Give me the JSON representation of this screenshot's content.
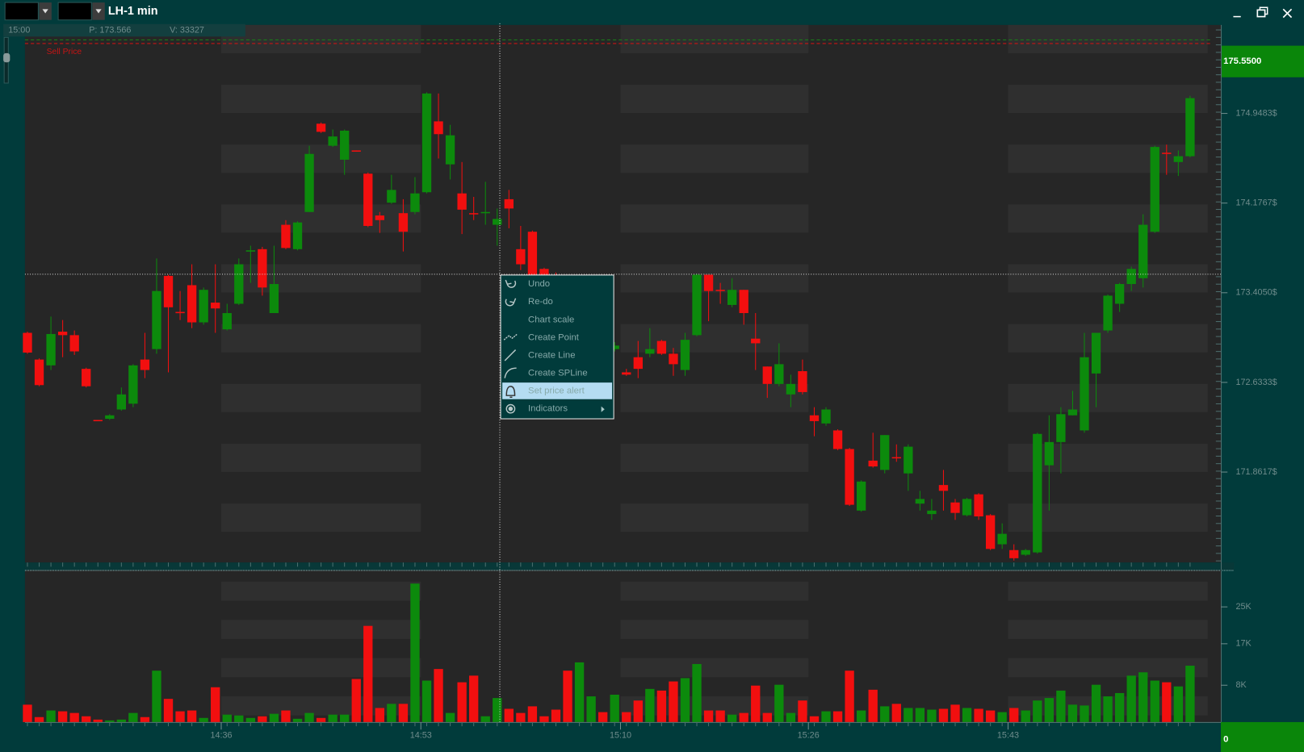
{
  "window": {
    "title": "LH-1 min"
  },
  "info_bar": {
    "time": "15:00",
    "price": "P: 173.566",
    "volume": "V: 33327"
  },
  "context_menu": {
    "items": [
      "Undo",
      "Re-do",
      "Chart scale",
      "Create Point",
      "Create Line",
      "Create SPLine",
      "Set price alert",
      "Indicators"
    ],
    "selected_index": 6
  },
  "chart_data": [
    {
      "type": "candlestick",
      "up_color": "#0c8a0c",
      "down_color": "#f20f0f",
      "open": [
        173.06,
        172.83,
        172.78,
        173.07,
        173.04,
        172.75,
        172.31,
        172.32,
        172.4,
        172.45,
        172.83,
        172.92,
        173.55,
        173.24,
        173.47,
        173.15,
        173.32,
        173.09,
        173.31,
        173.76,
        173.78,
        173.23,
        173.99,
        173.78,
        174.1,
        174.86,
        174.67,
        174.55,
        174.63,
        174.43,
        174.07,
        174.18,
        174.09,
        174.1,
        174.27,
        174.88,
        174.51,
        174.26,
        174.09,
        174.09,
        173.99,
        174.21,
        173.78,
        173.93,
        173.61,
        173.56,
        173.38,
        173.22,
        173.06,
        173.06,
        172.92,
        172.72,
        172.85,
        172.88,
        172.99,
        172.88,
        172.74,
        173.04,
        173.56,
        173.43,
        173.3,
        173.43,
        173.01,
        172.77,
        172.62,
        172.53,
        172.73,
        172.35,
        172.28,
        172.22,
        172.06,
        171.53,
        171.96,
        171.88,
        171.99,
        171.85,
        171.59,
        171.5,
        171.75,
        171.6,
        171.49,
        171.67,
        171.49,
        171.24,
        171.19,
        171.15,
        171.17,
        171.92,
        172.12,
        172.35,
        172.22,
        172.71,
        173.08,
        173.31,
        173.48,
        173.53,
        173.93,
        174.61,
        174.53,
        174.58
      ],
      "high": [
        173.07,
        172.84,
        173.2,
        173.17,
        173.08,
        172.76,
        172.31,
        172.36,
        172.59,
        172.79,
        173.06,
        173.7,
        173.56,
        173.42,
        173.65,
        173.45,
        173.65,
        173.31,
        173.7,
        173.81,
        173.8,
        173.81,
        174.03,
        174.02,
        174.67,
        174.87,
        174.81,
        174.81,
        174.63,
        174.44,
        174.1,
        174.42,
        174.21,
        174.4,
        175.13,
        175.12,
        174.85,
        174.53,
        174.23,
        174.36,
        174.13,
        174.29,
        173.98,
        173.94,
        173.62,
        173.58,
        173.4,
        173.35,
        173.3,
        173.1,
        172.98,
        172.75,
        172.99,
        173.1,
        173.0,
        172.93,
        173.06,
        173.57,
        173.56,
        173.49,
        173.53,
        173.43,
        173.23,
        172.77,
        172.97,
        172.7,
        172.83,
        172.42,
        172.42,
        172.23,
        172.07,
        171.79,
        172.2,
        172.18,
        172.1,
        172.1,
        171.7,
        171.63,
        171.88,
        171.63,
        171.64,
        171.68,
        171.5,
        171.42,
        171.24,
        171.2,
        172.2,
        172.35,
        172.42,
        172.56,
        173.06,
        173.06,
        173.39,
        173.49,
        173.63,
        174.08,
        174.67,
        174.68,
        174.63,
        175.1
      ],
      "low": [
        172.88,
        172.6,
        172.74,
        172.85,
        172.87,
        172.59,
        172.3,
        172.31,
        172.39,
        172.42,
        172.67,
        172.88,
        172.72,
        173.17,
        173.1,
        173.13,
        173.06,
        173.08,
        173.3,
        173.49,
        173.38,
        173.23,
        173.78,
        173.77,
        174.1,
        174.78,
        174.66,
        174.42,
        174.62,
        173.97,
        173.92,
        174.17,
        173.76,
        174.08,
        174.26,
        174.56,
        174.38,
        173.91,
        174.03,
        173.99,
        173.81,
        173.96,
        173.6,
        173.55,
        173.48,
        173.32,
        173.15,
        173.18,
        173.02,
        172.88,
        172.9,
        172.69,
        172.67,
        172.85,
        172.87,
        172.69,
        172.69,
        173.03,
        173.16,
        173.31,
        173.28,
        173.13,
        172.74,
        172.5,
        172.6,
        172.42,
        172.53,
        172.17,
        172.26,
        172.05,
        171.57,
        171.52,
        171.9,
        171.85,
        171.95,
        171.7,
        171.53,
        171.45,
        171.53,
        171.45,
        171.48,
        171.45,
        171.19,
        171.2,
        171.1,
        171.14,
        171.16,
        171.53,
        171.85,
        172.35,
        172.2,
        172.42,
        173.06,
        173.24,
        173.42,
        173.45,
        173.92,
        174.42,
        174.41,
        174.57
      ],
      "close": [
        172.89,
        172.61,
        173.05,
        173.04,
        172.9,
        172.6,
        172.3,
        172.35,
        172.53,
        172.78,
        172.74,
        173.42,
        173.28,
        173.23,
        173.15,
        173.43,
        173.27,
        173.23,
        173.65,
        173.77,
        173.45,
        173.48,
        173.79,
        174.01,
        174.6,
        174.79,
        174.75,
        174.8,
        174.62,
        173.98,
        174.03,
        174.29,
        173.93,
        174.26,
        175.12,
        174.77,
        174.76,
        174.12,
        174.08,
        174.1,
        174.04,
        174.13,
        173.65,
        173.56,
        173.56,
        173.35,
        173.2,
        173.31,
        173.28,
        172.92,
        172.95,
        172.7,
        172.75,
        172.92,
        172.88,
        172.79,
        173.0,
        173.56,
        173.42,
        173.42,
        173.43,
        173.23,
        172.97,
        172.62,
        172.79,
        172.62,
        172.55,
        172.3,
        172.4,
        172.06,
        171.58,
        171.78,
        171.91,
        172.18,
        171.98,
        172.08,
        171.63,
        171.53,
        171.7,
        171.51,
        171.63,
        171.48,
        171.2,
        171.33,
        171.12,
        171.19,
        172.19,
        172.12,
        172.36,
        172.4,
        172.85,
        173.06,
        173.38,
        173.48,
        173.61,
        173.99,
        174.66,
        174.6,
        174.58,
        175.08
      ],
      "ylim": [
        171.09,
        175.71
      ],
      "yticks": [
        {
          "value": 174.9483,
          "label": "174.9483$"
        },
        {
          "value": 174.1767,
          "label": "174.1767$"
        },
        {
          "value": 173.405,
          "label": "173.4050$"
        },
        {
          "value": 172.6333,
          "label": "172.6333$"
        },
        {
          "value": 171.8617,
          "label": "171.8617$"
        }
      ],
      "reference_line": {
        "label": "Sell Price",
        "value": 175.55,
        "color": "#c81414"
      },
      "price_marker": {
        "value": 175.55,
        "label": "175.5500"
      }
    },
    {
      "type": "bar",
      "categories": [
        null,
        null,
        null,
        null,
        null,
        null,
        null,
        null,
        null,
        null,
        null,
        null,
        null,
        null,
        null,
        null,
        null,
        "14:36",
        null,
        null,
        null,
        null,
        null,
        null,
        null,
        null,
        null,
        null,
        null,
        null,
        null,
        null,
        null,
        null,
        "14:53",
        null,
        null,
        null,
        null,
        null,
        null,
        null,
        null,
        null,
        null,
        null,
        null,
        null,
        null,
        null,
        null,
        "15:10",
        null,
        null,
        null,
        null,
        null,
        null,
        null,
        null,
        null,
        null,
        null,
        null,
        null,
        null,
        null,
        "15:26",
        null,
        null,
        null,
        null,
        null,
        null,
        null,
        null,
        null,
        null,
        null,
        null,
        null,
        null,
        null,
        null,
        "15:43",
        null,
        null,
        null,
        null,
        null,
        null,
        null,
        null,
        null,
        null,
        null,
        null,
        null,
        null,
        null
      ],
      "values": [
        3780,
        1080,
        2520,
        2340,
        1980,
        1260,
        540,
        360,
        540,
        1980,
        1080,
        11160,
        5040,
        2340,
        2520,
        900,
        7560,
        1620,
        1440,
        900,
        1260,
        1800,
        2520,
        720,
        1980,
        900,
        1620,
        1620,
        9360,
        20880,
        3060,
        3960,
        3960,
        30060,
        9000,
        11520,
        1980,
        8640,
        10080,
        1260,
        5220,
        2880,
        1980,
        3420,
        1260,
        2700,
        11160,
        12960,
        5580,
        2160,
        5940,
        2160,
        4680,
        7200,
        6840,
        8820,
        9540,
        12600,
        2520,
        2520,
        1620,
        1980,
        7920,
        1980,
        8100,
        1980,
        4680,
        1260,
        2340,
        2340,
        11160,
        2520,
        7020,
        3420,
        3960,
        3060,
        3060,
        2700,
        2880,
        3780,
        3060,
        2880,
        2520,
        2160,
        3060,
        2520,
        4680,
        5220,
        6840,
        3780,
        3600,
        8100,
        5580,
        6300,
        10080,
        10800,
        9000,
        8640,
        7740,
        12240
      ],
      "ylim": [
        0,
        33000
      ],
      "yticks": [
        {
          "value": 25000,
          "label": "25K"
        },
        {
          "value": 17000,
          "label": "17K"
        },
        {
          "value": 8000,
          "label": "8K"
        }
      ],
      "value_marker": 0
    }
  ]
}
